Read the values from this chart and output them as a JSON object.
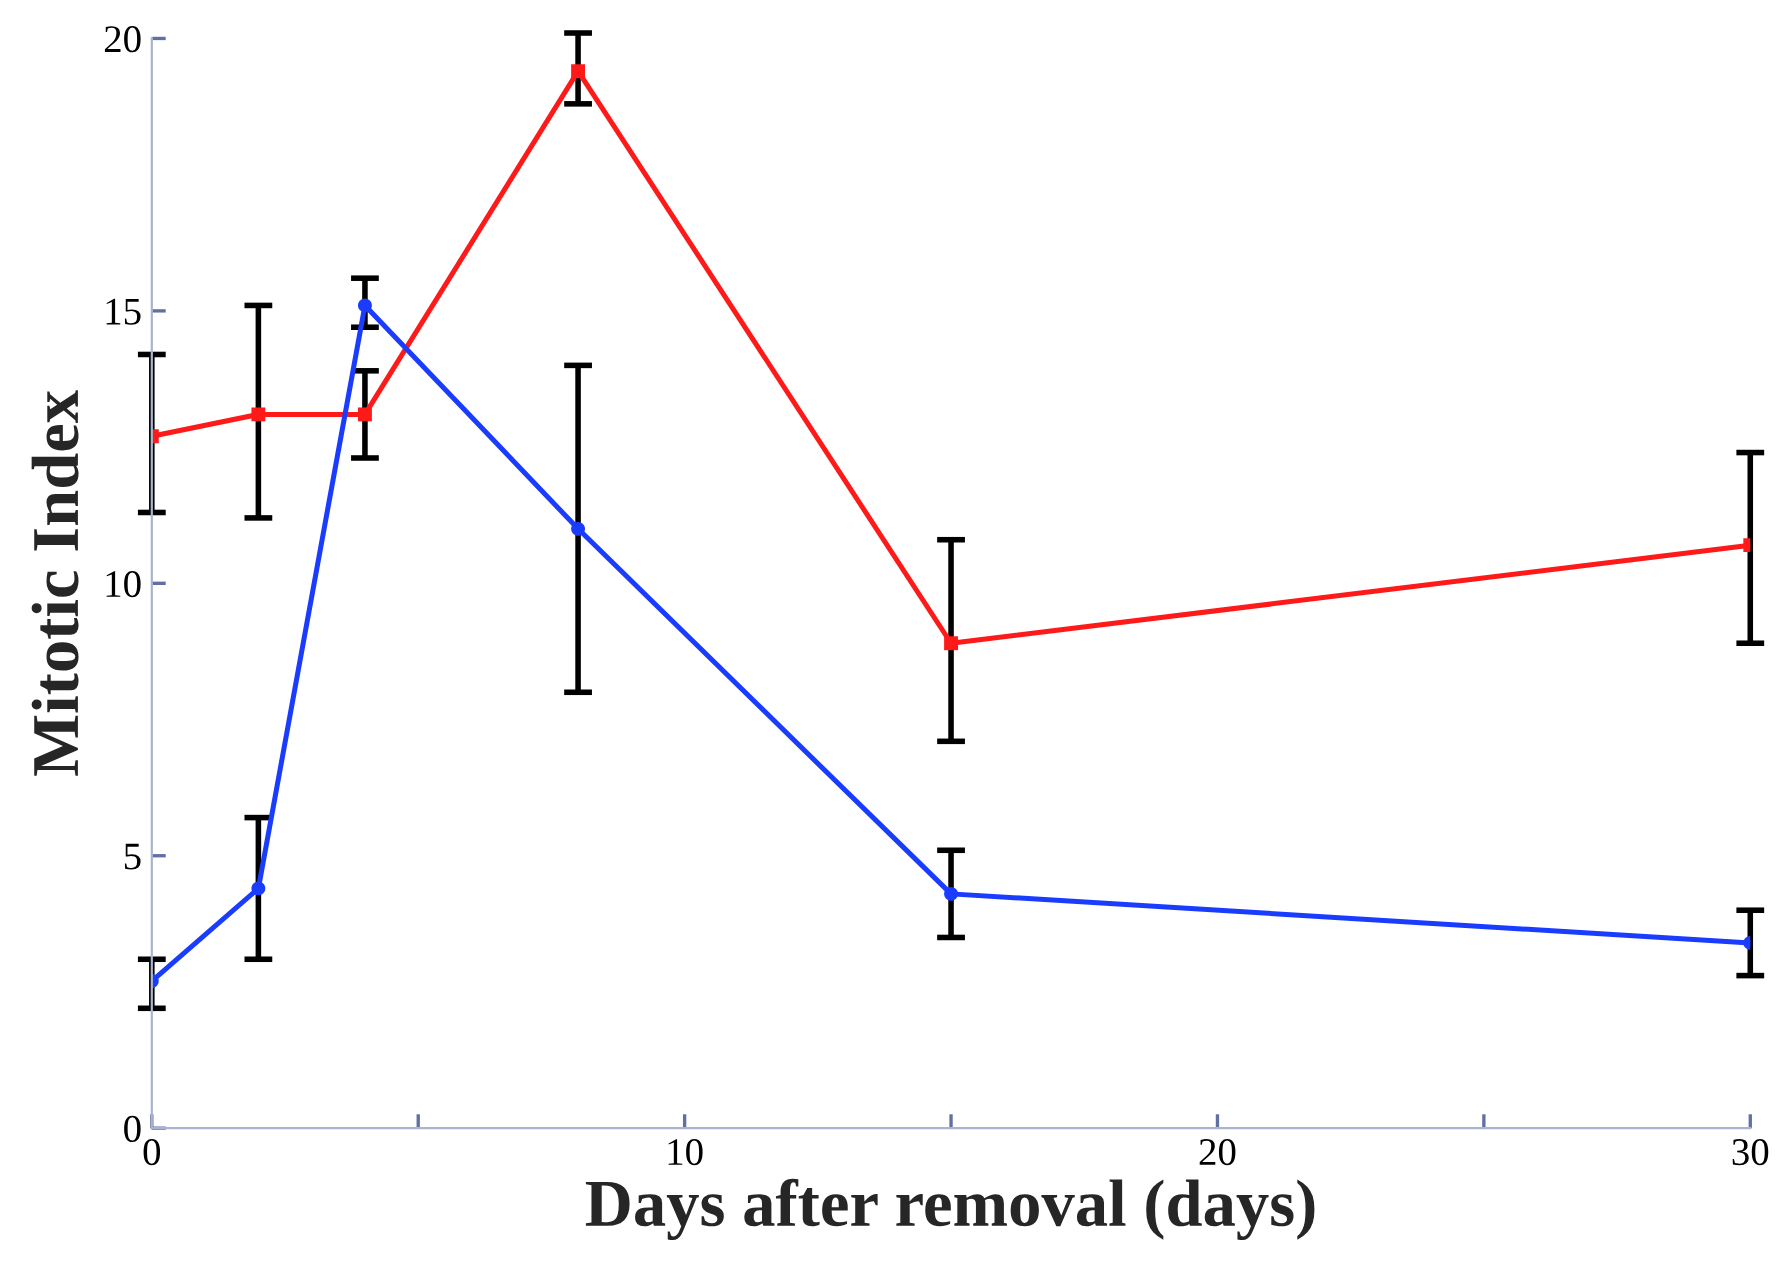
{
  "chart_data": {
    "type": "line",
    "xlabel": "Days after removal (days)",
    "ylabel": "Mitotic Index",
    "x": [
      0,
      2,
      4,
      8,
      15,
      30
    ],
    "series": [
      {
        "color": "#ff1a1a",
        "marker": "square",
        "values": [
          12.7,
          13.1,
          13.1,
          19.4,
          8.9,
          10.7
        ],
        "errors": [
          [
            11.3,
            14.2
          ],
          [
            11.2,
            15.1
          ],
          [
            12.3,
            13.9
          ],
          [
            18.8,
            20.1
          ],
          [
            7.1,
            10.8
          ],
          [
            8.9,
            12.4
          ]
        ]
      },
      {
        "color": "#1a3cff",
        "marker": "circle",
        "values": [
          2.7,
          4.4,
          15.1,
          11.0,
          4.3,
          3.4
        ],
        "errors": [
          [
            2.2,
            3.1
          ],
          [
            3.1,
            5.7
          ],
          [
            14.7,
            15.6
          ],
          [
            8.0,
            14.0
          ],
          [
            3.5,
            5.1
          ],
          [
            2.8,
            4.0
          ]
        ]
      }
    ],
    "xlim": [
      0,
      30
    ],
    "xticks": [
      0,
      {
        "value": 5,
        "label": null
      },
      10,
      {
        "value": 15,
        "label": null
      },
      20,
      {
        "value": 25,
        "label": null
      },
      30
    ],
    "ylim": [
      0,
      20
    ],
    "yticks": [
      0,
      5,
      10,
      15,
      20
    ],
    "grid": false,
    "legend": false,
    "line_style": "solid"
  }
}
